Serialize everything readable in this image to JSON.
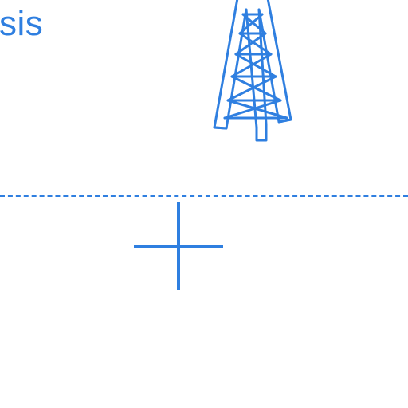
{
  "heading": {
    "text": "sis"
  },
  "colors": {
    "accent": "#2f7fe0",
    "background": "#ffffff"
  },
  "icons": {
    "tower": "transmission-tower-icon",
    "add": "plus-icon"
  }
}
